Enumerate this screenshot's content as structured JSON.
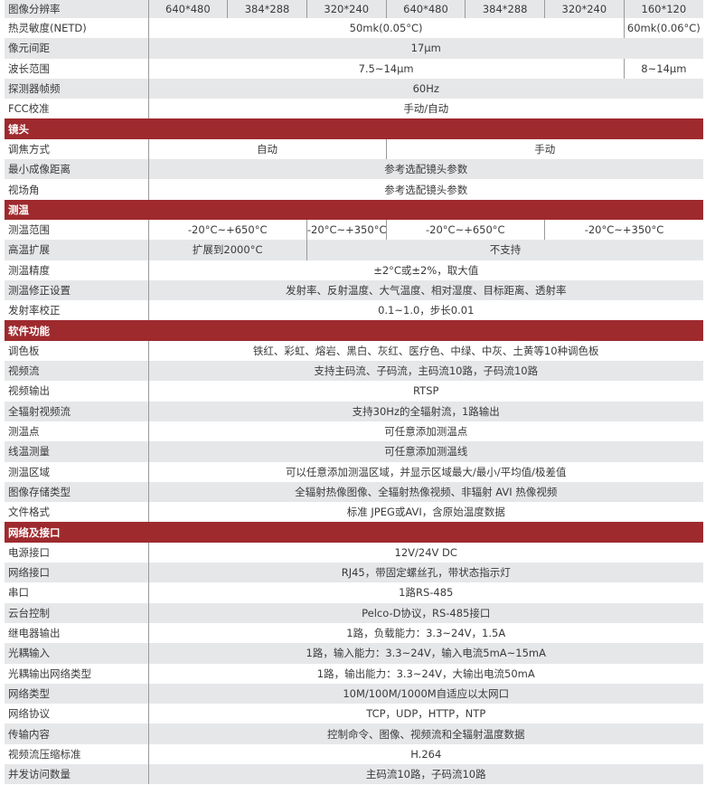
{
  "colors": {
    "section_header": "#9e2a2e",
    "row_gray": "#e6e7e9",
    "row_white": "#ffffff"
  },
  "sections": [
    {
      "title": "",
      "rows": [
        {
          "label": "图像分辨率",
          "cells": [
            {
              "text": "640*480",
              "span": 1
            },
            {
              "text": "384*288",
              "span": 1
            },
            {
              "text": "320*240",
              "span": 1
            },
            {
              "text": "640*480",
              "span": 1
            },
            {
              "text": "384*288",
              "span": 1
            },
            {
              "text": "320*240",
              "span": 1
            },
            {
              "text": "160*120",
              "span": 1
            }
          ]
        },
        {
          "label": "热灵敏度(NETD)",
          "cells": [
            {
              "text": "50mk(0.05°C)",
              "span": 6
            },
            {
              "text": "60mk(0.06°C)",
              "span": 1
            }
          ]
        },
        {
          "label": "像元间距",
          "cells": [
            {
              "text": "17μm",
              "span": 7
            }
          ]
        },
        {
          "label": "波长范围",
          "cells": [
            {
              "text": "7.5~14μm",
              "span": 6
            },
            {
              "text": "8~14μm",
              "span": 1
            }
          ]
        },
        {
          "label": "探测器帧频",
          "cells": [
            {
              "text": "60Hz",
              "span": 7
            }
          ]
        },
        {
          "label": "FCC校准",
          "cells": [
            {
              "text": "手动/自动",
              "span": 7
            }
          ]
        }
      ]
    },
    {
      "title": "镜头",
      "rows": [
        {
          "label": "调焦方式",
          "cells": [
            {
              "text": "自动",
              "span": 3
            },
            {
              "text": "手动",
              "span": 4
            }
          ]
        },
        {
          "label": "最小成像距离",
          "cells": [
            {
              "text": "参考选配镜头参数",
              "span": 7
            }
          ]
        },
        {
          "label": "视场角",
          "cells": [
            {
              "text": "参考选配镜头参数",
              "span": 7
            }
          ]
        }
      ]
    },
    {
      "title": "测温",
      "rows": [
        {
          "label": "测温范围",
          "cells": [
            {
              "text": "-20°C~+650°C",
              "span": 2
            },
            {
              "text": "-20°C~+350°C",
              "span": 1
            },
            {
              "text": "-20°C~+650°C",
              "span": 2
            },
            {
              "text": "-20°C~+350°C",
              "span": 2
            }
          ]
        },
        {
          "label": "高温扩展",
          "cells": [
            {
              "text": "扩展到2000°C",
              "span": 2
            },
            {
              "text": "不支持",
              "span": 5
            }
          ]
        },
        {
          "label": "测温精度",
          "cells": [
            {
              "text": "±2°C或±2%，取大值",
              "span": 7
            }
          ]
        },
        {
          "label": "测温修正设置",
          "cells": [
            {
              "text": "发射率、反射温度、大气温度、相对湿度、目标距离、透射率",
              "span": 7
            }
          ]
        },
        {
          "label": "发射率校正",
          "cells": [
            {
              "text": "0.1~1.0，步长0.01",
              "span": 7
            }
          ]
        }
      ]
    },
    {
      "title": "软件功能",
      "rows": [
        {
          "label": "调色板",
          "cells": [
            {
              "text": "铁红、彩虹、熔岩、黑白、灰红、医疗色、中绿、中灰、土黄等10种调色板",
              "span": 7
            }
          ]
        },
        {
          "label": "视频流",
          "cells": [
            {
              "text": "支持主码流、子码流，主码流10路，子码流10路",
              "span": 7
            }
          ]
        },
        {
          "label": "视频输出",
          "cells": [
            {
              "text": "RTSP",
              "span": 7
            }
          ]
        },
        {
          "label": "全辐射视频流",
          "cells": [
            {
              "text": "支持30Hz的全辐射流，1路输出",
              "span": 7
            }
          ]
        },
        {
          "label": "测温点",
          "cells": [
            {
              "text": "可任意添加测温点",
              "span": 7
            }
          ]
        },
        {
          "label": "线温测量",
          "cells": [
            {
              "text": "可任意添加测温线",
              "span": 7
            }
          ]
        },
        {
          "label": "测温区域",
          "cells": [
            {
              "text": "可以任意添加测温区域，并显示区域最大/最小/平均值/极差值",
              "span": 7
            }
          ]
        },
        {
          "label": "图像存储类型",
          "cells": [
            {
              "text": "全辐射热像图像、全辐射热像视频、非辐射 AVI 热像视频",
              "span": 7
            }
          ]
        },
        {
          "label": "文件格式",
          "cells": [
            {
              "text": "标准 JPEG或AVI，含原始温度数据",
              "span": 7
            }
          ]
        }
      ]
    },
    {
      "title": "网络及接口",
      "rows": [
        {
          "label": "电源接口",
          "cells": [
            {
              "text": "12V/24V DC",
              "span": 7
            }
          ]
        },
        {
          "label": "网络接口",
          "cells": [
            {
              "text": "RJ45，带固定螺丝孔，带状态指示灯",
              "span": 7
            }
          ]
        },
        {
          "label": "串口",
          "cells": [
            {
              "text": "1路RS-485",
              "span": 7
            }
          ]
        },
        {
          "label": "云台控制",
          "cells": [
            {
              "text": "Pelco-D协议，RS-485接口",
              "span": 7
            }
          ]
        },
        {
          "label": "继电器输出",
          "cells": [
            {
              "text": "1路，负载能力：3.3~24V，1.5A",
              "span": 7
            }
          ]
        },
        {
          "label": "光耦输入",
          "cells": [
            {
              "text": "1路，输入能力：3.3~24V，输入电流5mA~15mA",
              "span": 7
            }
          ]
        },
        {
          "label": "光耦输出网络类型",
          "cells": [
            {
              "text": "1路，输出能力：3.3~24V，大输出电流50mA",
              "span": 7
            }
          ]
        },
        {
          "label": "网络类型",
          "cells": [
            {
              "text": "10M/100M/1000M自适应以太网口",
              "span": 7
            }
          ]
        },
        {
          "label": "网络协议",
          "cells": [
            {
              "text": "TCP，UDP，HTTP，NTP",
              "span": 7
            }
          ]
        },
        {
          "label": "传输内容",
          "cells": [
            {
              "text": "控制命令、图像、视频流和全辐射温度数据",
              "span": 7
            }
          ]
        },
        {
          "label": "视频流压缩标准",
          "cells": [
            {
              "text": "H.264",
              "span": 7
            }
          ]
        },
        {
          "label": "并发访问数量",
          "cells": [
            {
              "text": "主码流10路，子码流10路",
              "span": 7
            }
          ]
        }
      ]
    }
  ]
}
